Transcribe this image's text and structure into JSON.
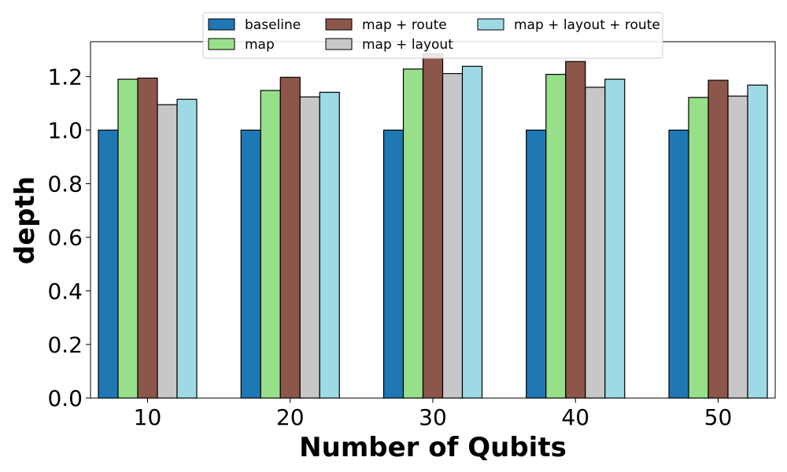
{
  "chart_data": {
    "type": "bar",
    "title": "",
    "xlabel": "Number of Qubits",
    "ylabel": "depth",
    "categories": [
      "10",
      "20",
      "30",
      "40",
      "50"
    ],
    "ylim": [
      0.0,
      1.33
    ],
    "yticks": [
      "0.0",
      "0.2",
      "0.4",
      "0.6",
      "0.8",
      "1.0",
      "1.2"
    ],
    "grid": false,
    "legend": {
      "placement": "top-center",
      "columns": 3
    },
    "series": [
      {
        "name": "baseline",
        "color": "#1f77b4",
        "values": [
          1.0,
          1.0,
          1.0,
          1.0,
          1.0
        ]
      },
      {
        "name": "map",
        "color": "#98df8a",
        "values": [
          1.19,
          1.148,
          1.228,
          1.208,
          1.122
        ]
      },
      {
        "name": "map + route",
        "color": "#8c564b",
        "values": [
          1.194,
          1.197,
          1.285,
          1.256,
          1.186
        ]
      },
      {
        "name": "map + layout",
        "color": "#c7c7c7",
        "values": [
          1.095,
          1.124,
          1.211,
          1.16,
          1.127
        ]
      },
      {
        "name": "map + layout + route",
        "color": "#9edae5",
        "values": [
          1.115,
          1.141,
          1.238,
          1.19,
          1.168
        ]
      }
    ]
  }
}
